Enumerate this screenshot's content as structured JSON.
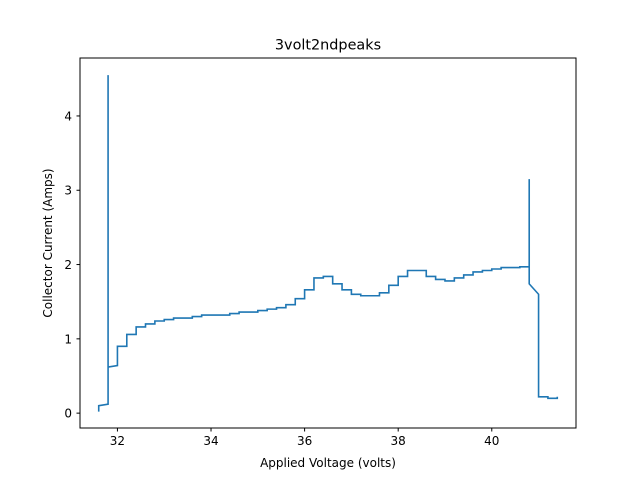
{
  "chart_data": {
    "type": "line",
    "title": "3volt2ndpeaks",
    "xlabel": "Applied Voltage (volts)",
    "ylabel": "Collector Current (Amps)",
    "xlim": [
      31.2,
      41.8
    ],
    "ylim": [
      -0.2,
      4.78
    ],
    "xticks": [
      32,
      34,
      36,
      38,
      40
    ],
    "yticks": [
      0,
      1,
      2,
      3,
      4
    ],
    "xtick_labels": [
      "32",
      "34",
      "36",
      "38",
      "40"
    ],
    "ytick_labels": [
      "0",
      "1",
      "2",
      "3",
      "4"
    ],
    "grid": false,
    "legend": "none",
    "line_color": "#1f77b4",
    "series": [
      {
        "x": [
          31.6,
          31.6,
          31.6,
          31.8,
          31.8,
          31.8,
          31.8,
          31.8,
          32.0,
          32.0,
          32.2,
          32.2,
          32.4,
          32.4,
          32.6,
          32.6,
          32.8,
          32.8,
          33.0,
          33.0,
          33.2,
          33.2,
          33.6,
          33.6,
          33.8,
          33.8,
          34.4,
          34.4,
          34.6,
          34.6,
          35.0,
          35.0,
          35.2,
          35.2,
          35.4,
          35.4,
          35.6,
          35.6,
          35.8,
          35.8,
          36.0,
          36.0,
          36.2,
          36.2,
          36.4,
          36.4,
          36.6,
          36.6,
          36.8,
          36.8,
          37.0,
          37.0,
          37.2,
          37.2,
          37.6,
          37.6,
          37.8,
          37.8,
          38.0,
          38.0,
          38.2,
          38.2,
          38.6,
          38.6,
          38.8,
          38.8,
          39.0,
          39.0,
          39.2,
          39.2,
          39.4,
          39.4,
          39.6,
          39.6,
          39.8,
          39.8,
          40.0,
          40.0,
          40.2,
          40.2,
          40.6,
          40.6,
          40.8,
          40.8,
          40.8,
          40.8,
          41.0,
          41.0,
          41.2,
          41.2,
          41.4,
          41.4
        ],
        "y": [
          0.02,
          0.1,
          0.1,
          0.12,
          4.55,
          0.62,
          0.62,
          0.62,
          0.64,
          0.9,
          0.9,
          1.06,
          1.06,
          1.16,
          1.16,
          1.2,
          1.2,
          1.24,
          1.24,
          1.26,
          1.26,
          1.28,
          1.28,
          1.3,
          1.3,
          1.32,
          1.32,
          1.34,
          1.34,
          1.36,
          1.36,
          1.38,
          1.38,
          1.4,
          1.4,
          1.42,
          1.42,
          1.46,
          1.46,
          1.54,
          1.54,
          1.66,
          1.66,
          1.82,
          1.82,
          1.84,
          1.84,
          1.74,
          1.74,
          1.66,
          1.66,
          1.6,
          1.6,
          1.58,
          1.58,
          1.62,
          1.62,
          1.72,
          1.72,
          1.84,
          1.84,
          1.92,
          1.92,
          1.84,
          1.84,
          1.8,
          1.8,
          1.78,
          1.78,
          1.82,
          1.82,
          1.86,
          1.86,
          1.9,
          1.9,
          1.92,
          1.92,
          1.94,
          1.94,
          1.96,
          1.96,
          1.97,
          1.97,
          3.15,
          1.74,
          1.74,
          1.6,
          0.22,
          0.22,
          0.2,
          0.2,
          0.22
        ]
      }
    ]
  }
}
